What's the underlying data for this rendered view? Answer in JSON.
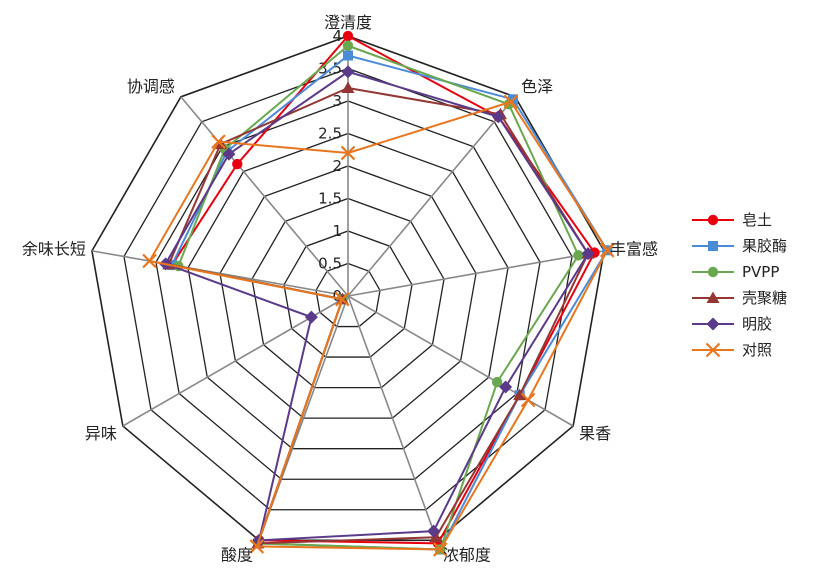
{
  "chart_data": {
    "type": "radar",
    "axes": [
      "澄清度",
      "色泽",
      "丰富感",
      "果香",
      "浓郁度",
      "酸度",
      "异味",
      "余味长短",
      "协调感"
    ],
    "rlim": [
      0,
      4
    ],
    "ticks": [
      "0",
      "0.5",
      "1",
      "1.5",
      "2",
      "2.5",
      "3",
      "3.5",
      "4"
    ],
    "grid": true,
    "legend_position": "right",
    "series": [
      {
        "name": "皂土",
        "color": "#E8000E",
        "marker": "circle",
        "values": [
          4.0,
          3.6,
          3.85,
          3.05,
          4.05,
          4.0,
          0.1,
          2.75,
          2.65
        ]
      },
      {
        "name": "果胶酶",
        "color": "#4A8BD8",
        "marker": "square",
        "values": [
          3.7,
          3.95,
          4.05,
          3.05,
          4.15,
          4.05,
          0.1,
          2.75,
          2.9
        ]
      },
      {
        "name": "PVPP",
        "color": "#6AA84F",
        "marker": "circle",
        "values": [
          3.85,
          3.85,
          3.6,
          2.65,
          4.15,
          4.05,
          0.1,
          2.65,
          2.95
        ]
      },
      {
        "name": "壳聚糖",
        "color": "#943634",
        "marker": "triangle",
        "values": [
          3.2,
          3.65,
          3.75,
          3.05,
          3.95,
          4.05,
          0.1,
          2.8,
          3.05
        ]
      },
      {
        "name": "明胶",
        "color": "#5B3A8A",
        "marker": "diamond",
        "values": [
          3.45,
          3.6,
          3.75,
          2.8,
          3.85,
          4.0,
          0.65,
          2.85,
          2.85
        ]
      },
      {
        "name": "对照",
        "color": "#E8761F",
        "marker": "x",
        "values": [
          2.2,
          3.9,
          4.05,
          3.2,
          4.15,
          4.1,
          0.1,
          3.1,
          3.1
        ]
      }
    ]
  }
}
